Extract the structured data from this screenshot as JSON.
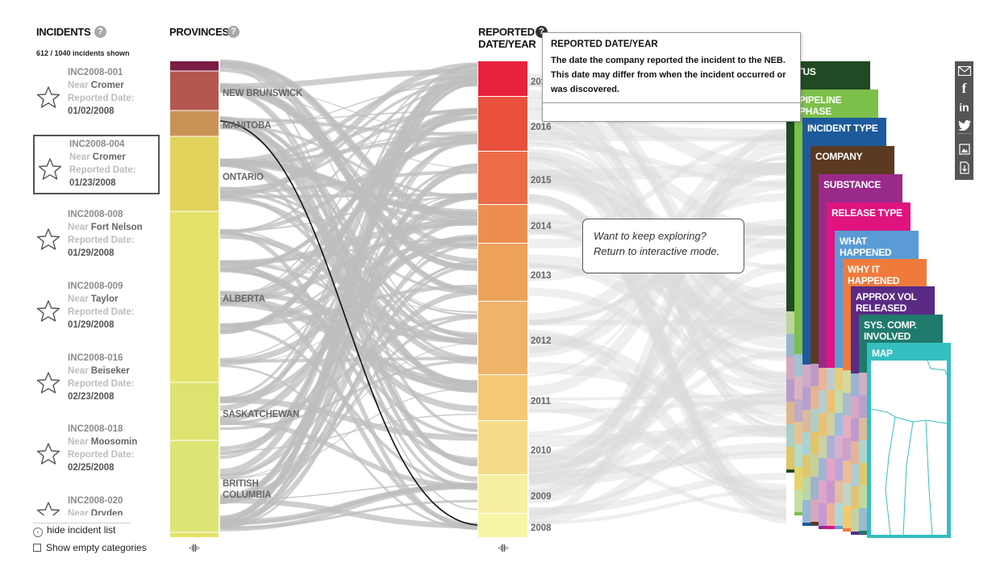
{
  "incidents_panel": {
    "title": "INCIDENTS",
    "count_text": "612 / 1040 incidents shown",
    "near_label": "Near",
    "reported_label": "Reported Date:",
    "items": [
      {
        "id": "INC2008-001",
        "place": "Cromer",
        "date": "01/02/2008",
        "selected": false
      },
      {
        "id": "INC2008-004",
        "place": "Cromer",
        "date": "01/23/2008",
        "selected": true
      },
      {
        "id": "INC2008-008",
        "place": "Fort Nelson",
        "date": "01/29/2008",
        "selected": false
      },
      {
        "id": "INC2008-009",
        "place": "Taylor",
        "date": "01/29/2008",
        "selected": false
      },
      {
        "id": "INC2008-016",
        "place": "Beiseker",
        "date": "02/23/2008",
        "selected": false
      },
      {
        "id": "INC2008-018",
        "place": "Moosomin",
        "date": "02/25/2008",
        "selected": false
      },
      {
        "id": "INC2008-020",
        "place": "Dryden",
        "date": "",
        "selected": false
      }
    ],
    "hide_label": "hide incident list",
    "empty_label": "Show empty categories"
  },
  "provinces_column": {
    "title": "PROVINCES",
    "labels": [
      "NEW BRUNSWICK",
      "MANITOBA",
      "ONTARIO",
      "ALBERTA",
      "SASKATCHEWAN",
      "BRITISH",
      "COLUMBIA"
    ],
    "segment_colors": [
      "#7a1c44",
      "#b5574f",
      "#c99355",
      "#e2d35c",
      "#e5e26a",
      "#dde36f",
      "#dde574",
      "#e7e26a"
    ]
  },
  "year_column": {
    "title_line1": "REPORTED",
    "title_line2": "DATE/YEAR",
    "years": [
      "2016",
      "2015",
      "2014",
      "2013",
      "2012",
      "2011",
      "2010",
      "2009",
      "2008"
    ],
    "top_year_partial": "201",
    "segment_colors": [
      "#e8213c",
      "#e9513c",
      "#ec6c45",
      "#ee8d50",
      "#eea25a",
      "#efb467",
      "#f4c875",
      "#f6dc88",
      "#f8f0a1",
      "#f7f5a6"
    ]
  },
  "tooltip": {
    "title": "REPORTED DATE/YEAR",
    "body": "The date the company reported the incident to the NEB. This date may differ from when the incident occurred or was discovered."
  },
  "explore_box": {
    "line1": "Want to keep exploring?",
    "line2": "Return to interactive mode."
  },
  "cards": [
    {
      "title": "ATUS",
      "color": "#204a23"
    },
    {
      "title": "PIPELINE PHASE",
      "color": "#7cbf4a"
    },
    {
      "title": "INCIDENT TYPE",
      "color": "#1d5a9b"
    },
    {
      "title": "COMPANY",
      "color": "#5c3a21"
    },
    {
      "title": "SUBSTANCE",
      "color": "#9a2a8a"
    },
    {
      "title": "RELEASE TYPE",
      "color": "#e0147e"
    },
    {
      "title": "WHAT HAPPENED",
      "color": "#5a9bd6"
    },
    {
      "title": "WHY IT HAPPENED",
      "color": "#f07a3c"
    },
    {
      "title": "APPROX VOL RELEASED",
      "color": "#5a2a84"
    },
    {
      "title": "SYS. COMP. INVOLVED",
      "color": "#1f7a6c"
    },
    {
      "title": "MAP",
      "color": "#35bfc0"
    }
  ],
  "share_bar": {
    "icons": [
      "email-icon",
      "facebook-icon",
      "linkedin-icon",
      "twitter-icon",
      "screenshot-icon",
      "download-icon"
    ]
  },
  "colors": {
    "flow_gray": "#bdbdbd",
    "selected_flow": "#111111",
    "accent": "#e8213c"
  }
}
